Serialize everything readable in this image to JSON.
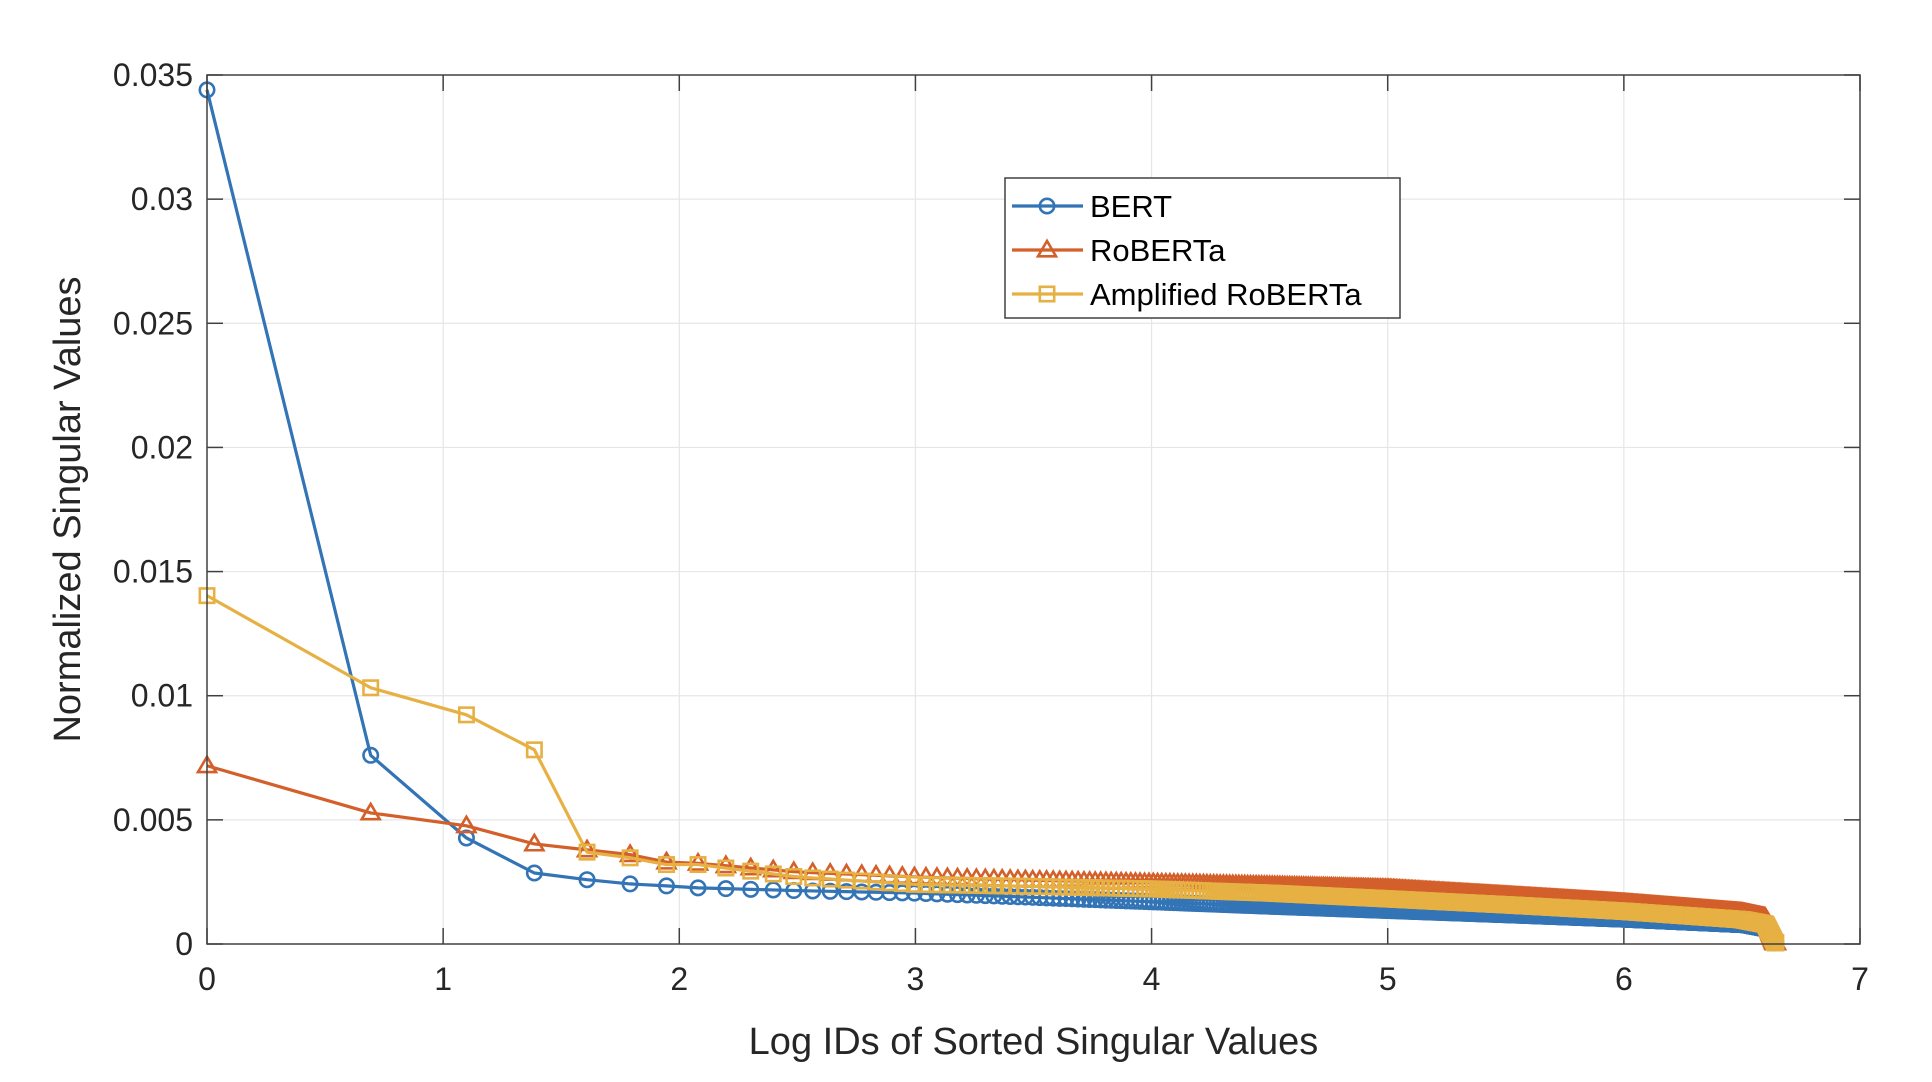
{
  "chart_data": {
    "type": "line",
    "title": "",
    "xlabel": "Log IDs of Sorted Singular Values",
    "ylabel": "Normalized Singular Values",
    "xlim": [
      0,
      7
    ],
    "ylim": [
      0,
      0.035
    ],
    "xticks": [
      0,
      1,
      2,
      3,
      4,
      5,
      6,
      7
    ],
    "xtick_labels": [
      "0",
      "1",
      "2",
      "3",
      "4",
      "5",
      "6",
      "7"
    ],
    "yticks": [
      0,
      0.005,
      0.01,
      0.015,
      0.02,
      0.025,
      0.03,
      0.035
    ],
    "ytick_labels": [
      "0",
      "0.005",
      "0.01",
      "0.015",
      "0.02",
      "0.025",
      "0.03",
      "0.035"
    ],
    "grid": true,
    "legend_position": "top-center-right",
    "x_note": "x = ln(rank), rank 1..768",
    "series": [
      {
        "name": "BERT",
        "color": "#3274b5",
        "marker": "circle",
        "head_ranks": [
          1,
          2,
          3,
          4,
          5,
          6,
          7,
          8
        ],
        "head_values": [
          0.0344,
          0.0076,
          0.00427,
          0.00286,
          0.00259,
          0.00242,
          0.00234,
          0.00226
        ],
        "tail_x": [
          2.5,
          3.0,
          3.5,
          4.0,
          4.5,
          5.0,
          5.5,
          6.0,
          6.5,
          6.6,
          6.64
        ],
        "tail_values": [
          0.00215,
          0.00205,
          0.00188,
          0.0017,
          0.00152,
          0.00135,
          0.00118,
          0.001,
          0.00078,
          0.0006,
          5e-05
        ]
      },
      {
        "name": "RoBERTa",
        "color": "#d35f2a",
        "marker": "triangle",
        "head_ranks": [
          1,
          2,
          3,
          4,
          5,
          6,
          7,
          8
        ],
        "head_values": [
          0.00718,
          0.00528,
          0.00476,
          0.00403,
          0.00379,
          0.0036,
          0.0033,
          0.00325
        ],
        "tail_x": [
          2.5,
          3.0,
          3.5,
          4.0,
          4.5,
          5.0,
          5.5,
          6.0,
          6.5,
          6.6,
          6.64
        ],
        "tail_values": [
          0.0029,
          0.0027,
          0.00257,
          0.00246,
          0.00235,
          0.00222,
          0.00193,
          0.00163,
          0.00125,
          0.00105,
          5e-05
        ]
      },
      {
        "name": "Amplified RoBERTa",
        "color": "#e6b043",
        "marker": "square",
        "head_ranks": [
          1,
          2,
          3,
          4,
          5,
          6,
          7,
          8
        ],
        "head_values": [
          0.01403,
          0.01032,
          0.00923,
          0.00782,
          0.0037,
          0.00347,
          0.0032,
          0.0032
        ],
        "tail_x": [
          2.5,
          3.0,
          3.5,
          4.0,
          4.5,
          5.0,
          5.5,
          6.0,
          6.5,
          6.6,
          6.64
        ],
        "tail_values": [
          0.0027,
          0.0024,
          0.00232,
          0.00222,
          0.00205,
          0.00182,
          0.00158,
          0.00132,
          0.00098,
          0.0008,
          5e-05
        ]
      }
    ]
  }
}
